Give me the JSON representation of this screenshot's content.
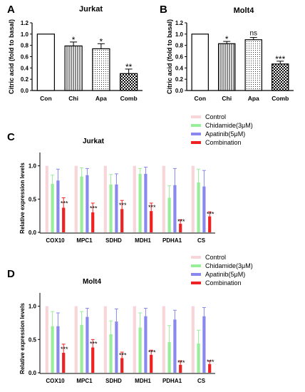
{
  "colors": {
    "control": "#f8d5d8",
    "chidamide": "#99ee99",
    "apatinib": "#8888ee",
    "combination": "#ee2222",
    "axis": "#000000"
  },
  "legend": {
    "items": [
      {
        "label": "Control",
        "color": "#f8d5d8"
      },
      {
        "label": "Chidamide(3μM)",
        "color": "#99ee99"
      },
      {
        "label": "Apatinib(5μM)",
        "color": "#8888ee"
      },
      {
        "label": "Combination",
        "color": "#ee2222"
      }
    ]
  },
  "chart_data": [
    {
      "panel": "A",
      "type": "bar",
      "title": "Jurkat",
      "ylabel": "Citric acid (fold to basal)",
      "ylim": [
        0,
        1.2
      ],
      "yticks": [
        "0.0",
        "0.2",
        "0.4",
        "0.6",
        "0.8",
        "1.0",
        "1.2"
      ],
      "categories": [
        "Con",
        "Chi",
        "Apa",
        "Comb"
      ],
      "values": [
        1.0,
        0.79,
        0.74,
        0.3
      ],
      "errors": [
        0,
        0.07,
        0.09,
        0.08
      ],
      "significance": [
        "",
        "*",
        "*",
        "**"
      ],
      "patterns": [
        "plain",
        "vertical",
        "dots",
        "check"
      ]
    },
    {
      "panel": "B",
      "type": "bar",
      "title": "Molt4",
      "ylabel": "Citric acid (fold to basal)",
      "ylim": [
        0,
        1.2
      ],
      "yticks": [
        "0.0",
        "0.2",
        "0.4",
        "0.6",
        "0.8",
        "1.0",
        "1.2"
      ],
      "categories": [
        "Con",
        "Chi",
        "Apa",
        "Comb"
      ],
      "values": [
        1.0,
        0.83,
        0.9,
        0.47
      ],
      "errors": [
        0,
        0.04,
        0.04,
        0.05
      ],
      "significance": [
        "",
        "*",
        "ns",
        "***"
      ],
      "patterns": [
        "plain",
        "vertical",
        "dots",
        "check"
      ]
    },
    {
      "panel": "C",
      "type": "bar",
      "title": "Jurkat",
      "ylabel": "Relative expression levels",
      "ylim": [
        0,
        1.2
      ],
      "yticks": [
        "0.0",
        "0.5",
        "1.0"
      ],
      "categories": [
        "COX10",
        "MPC1",
        "SDHD",
        "MDH1",
        "PDHA1",
        "CS"
      ],
      "series": [
        {
          "name": "Control",
          "values": [
            1,
            1,
            1,
            1,
            1,
            1
          ],
          "errors": [
            0,
            0,
            0,
            0,
            0,
            0
          ]
        },
        {
          "name": "Chidamide(3μM)",
          "values": [
            0.73,
            0.84,
            0.72,
            0.88,
            0.52,
            0.75
          ],
          "errors": [
            0.13,
            0.13,
            0.15,
            0.08,
            0.18,
            0.2
          ]
        },
        {
          "name": "Apatinib(5μM)",
          "values": [
            0.78,
            0.86,
            0.72,
            0.88,
            0.71,
            0.69
          ],
          "errors": [
            0.17,
            0.1,
            0.16,
            0.1,
            0.25,
            0.24
          ]
        },
        {
          "name": "Combination",
          "values": [
            0.37,
            0.3,
            0.35,
            0.32,
            0.13,
            0.24
          ],
          "errors": [
            0.15,
            0.14,
            0.13,
            0.12,
            0.06,
            0.07
          ]
        }
      ],
      "significance": [
        "***",
        "***",
        "***",
        "***",
        "***",
        "***"
      ]
    },
    {
      "panel": "D",
      "type": "bar",
      "title": "Molt4",
      "ylabel": "Relative expression levels",
      "ylim": [
        0,
        1.2
      ],
      "yticks": [
        "0.0",
        "0.5",
        "1.0"
      ],
      "categories": [
        "COX10",
        "MPC1",
        "SDHD",
        "MDH1",
        "PDHA1",
        "CS"
      ],
      "series": [
        {
          "name": "Control",
          "values": [
            1,
            1,
            1,
            1,
            1,
            1
          ],
          "errors": [
            0,
            0,
            0,
            0,
            0,
            0
          ]
        },
        {
          "name": "Chidamide(3μM)",
          "values": [
            0.7,
            0.72,
            0.58,
            0.68,
            0.46,
            0.44
          ],
          "errors": [
            0.22,
            0.2,
            0.2,
            0.22,
            0.25,
            0.2
          ]
        },
        {
          "name": "Apatinib(5μM)",
          "values": [
            0.7,
            0.84,
            0.77,
            0.85,
            0.8,
            0.85
          ],
          "errors": [
            0.2,
            0.13,
            0.19,
            0.12,
            0.14,
            0.13
          ]
        },
        {
          "name": "Combination",
          "values": [
            0.3,
            0.38,
            0.22,
            0.27,
            0.12,
            0.13
          ],
          "errors": [
            0.13,
            0.12,
            0.09,
            0.07,
            0.06,
            0.05
          ]
        }
      ],
      "significance": [
        "***",
        "***",
        "***",
        "***",
        "***",
        "***"
      ]
    }
  ]
}
